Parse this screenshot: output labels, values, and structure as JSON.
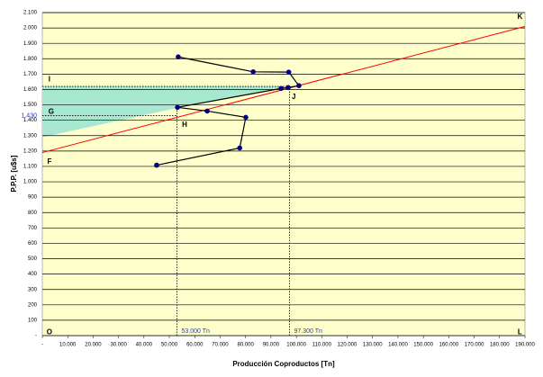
{
  "chart_data": {
    "type": "line",
    "xlabel": "Producción Coproductos [Tn]",
    "ylabel": "P.P.P. [u$s]",
    "xlim": [
      0,
      190000
    ],
    "ylim": [
      0,
      2100
    ],
    "xticks": [
      {
        "value": 0,
        "label": "-"
      },
      {
        "value": 10000,
        "label": "10.000"
      },
      {
        "value": 20000,
        "label": "20.000"
      },
      {
        "value": 30000,
        "label": "30.000"
      },
      {
        "value": 40000,
        "label": "40.000"
      },
      {
        "value": 50000,
        "label": "50.000"
      },
      {
        "value": 60000,
        "label": "60.000"
      },
      {
        "value": 70000,
        "label": "70.000"
      },
      {
        "value": 80000,
        "label": "80.000"
      },
      {
        "value": 90000,
        "label": "90.000"
      },
      {
        "value": 100000,
        "label": "100.000"
      },
      {
        "value": 110000,
        "label": "110.000"
      },
      {
        "value": 120000,
        "label": "120.000"
      },
      {
        "value": 130000,
        "label": "130.000"
      },
      {
        "value": 140000,
        "label": "140.000"
      },
      {
        "value": 150000,
        "label": "150.000"
      },
      {
        "value": 160000,
        "label": "160.000"
      },
      {
        "value": 170000,
        "label": "170.000"
      },
      {
        "value": 180000,
        "label": "180.000"
      },
      {
        "value": 190000,
        "label": "190.000"
      }
    ],
    "yticks": [
      {
        "value": 0,
        "label": "-"
      },
      100,
      200,
      300,
      400,
      500,
      600,
      700,
      800,
      900,
      {
        "value": 1000,
        "label": "1.000"
      },
      {
        "value": 1100,
        "label": "1.100"
      },
      {
        "value": 1200,
        "label": "1.200"
      },
      {
        "value": 1300,
        "label": "1.300"
      },
      {
        "value": 1400,
        "label": "1.400"
      },
      {
        "value": 1500,
        "label": "1.500"
      },
      {
        "value": 1600,
        "label": "1.600"
      },
      {
        "value": 1700,
        "label": "1.700"
      },
      {
        "value": 1800,
        "label": "1.800"
      },
      {
        "value": 1900,
        "label": "1.900"
      },
      {
        "value": 2000,
        "label": "2.000"
      },
      {
        "value": 2100,
        "label": "2.100"
      }
    ],
    "grid": true,
    "background": "#ffffcc",
    "area": {
      "color": "#a8e8d0",
      "x": [
        0,
        96000,
        53000,
        0
      ],
      "values": [
        1620,
        1620,
        1480,
        1290
      ]
    },
    "trend_line": {
      "color": "#ff0000",
      "x": [
        0,
        190000
      ],
      "values": [
        1190,
        2010
      ]
    },
    "series": [
      {
        "color": "#000080",
        "x": [
          53500,
          83000,
          97000,
          101000,
          96800,
          94000,
          53200,
          64900,
          80100,
          77700,
          45000
        ],
        "values": [
          1812,
          1715,
          1713,
          1625,
          1613,
          1607,
          1484,
          1460,
          1419,
          1220,
          1108
        ]
      }
    ],
    "hlines": [
      {
        "y": 1620,
        "xmax": 97300
      },
      {
        "y": 1430,
        "xmax": 53000,
        "label": "1.430"
      }
    ],
    "vlines": [
      {
        "x": 53000,
        "ymax": 1480,
        "label": "53.000 Tn"
      },
      {
        "x": 97300,
        "ymax": 1620,
        "label": "97.300 Tn"
      }
    ],
    "point_labels": [
      {
        "text": "K",
        "x": 188000,
        "y": 2070
      },
      {
        "text": "L",
        "x": 188000,
        "y": 20
      },
      {
        "text": "O",
        "x": 2800,
        "y": 20
      },
      {
        "text": "F",
        "x": 2800,
        "y": 1130
      },
      {
        "text": "I",
        "x": 2800,
        "y": 1665
      },
      {
        "text": "G",
        "x": 3500,
        "y": 1455
      },
      {
        "text": "H",
        "x": 56000,
        "y": 1370
      },
      {
        "text": "J",
        "x": 99000,
        "y": 1550
      }
    ]
  }
}
